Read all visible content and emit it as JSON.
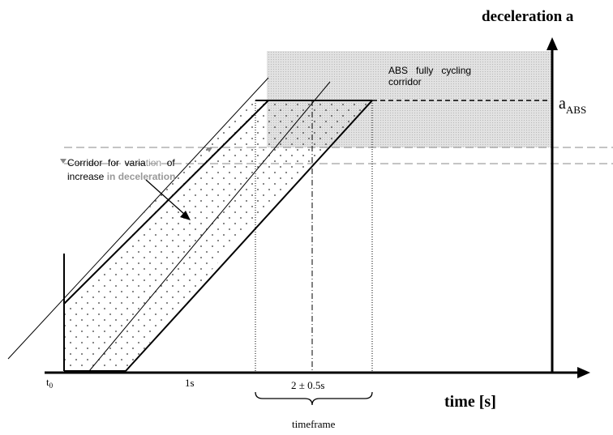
{
  "y_axis_label": "deceleration a",
  "x_axis_label": "time [s]",
  "abs_level_label_main": "a",
  "abs_level_label_sub": "ABS",
  "abs_zone_label_line1": "ABS   fully   cycling",
  "abs_zone_label_line2": "corridor",
  "corridor_label_line1_a": "Corridor  for  varia",
  "corridor_label_line1_b": "tion",
  "corridor_label_line1_c": "  of",
  "corridor_label_line2_a": "increase ",
  "corridor_label_line2_b": "in deceleration",
  "tick_t0_main": "t",
  "tick_t0_sub": "0",
  "tick_1s": "1s",
  "tick_2s": "2 ± 0.5s",
  "timeframe_label": "timeframe"
}
